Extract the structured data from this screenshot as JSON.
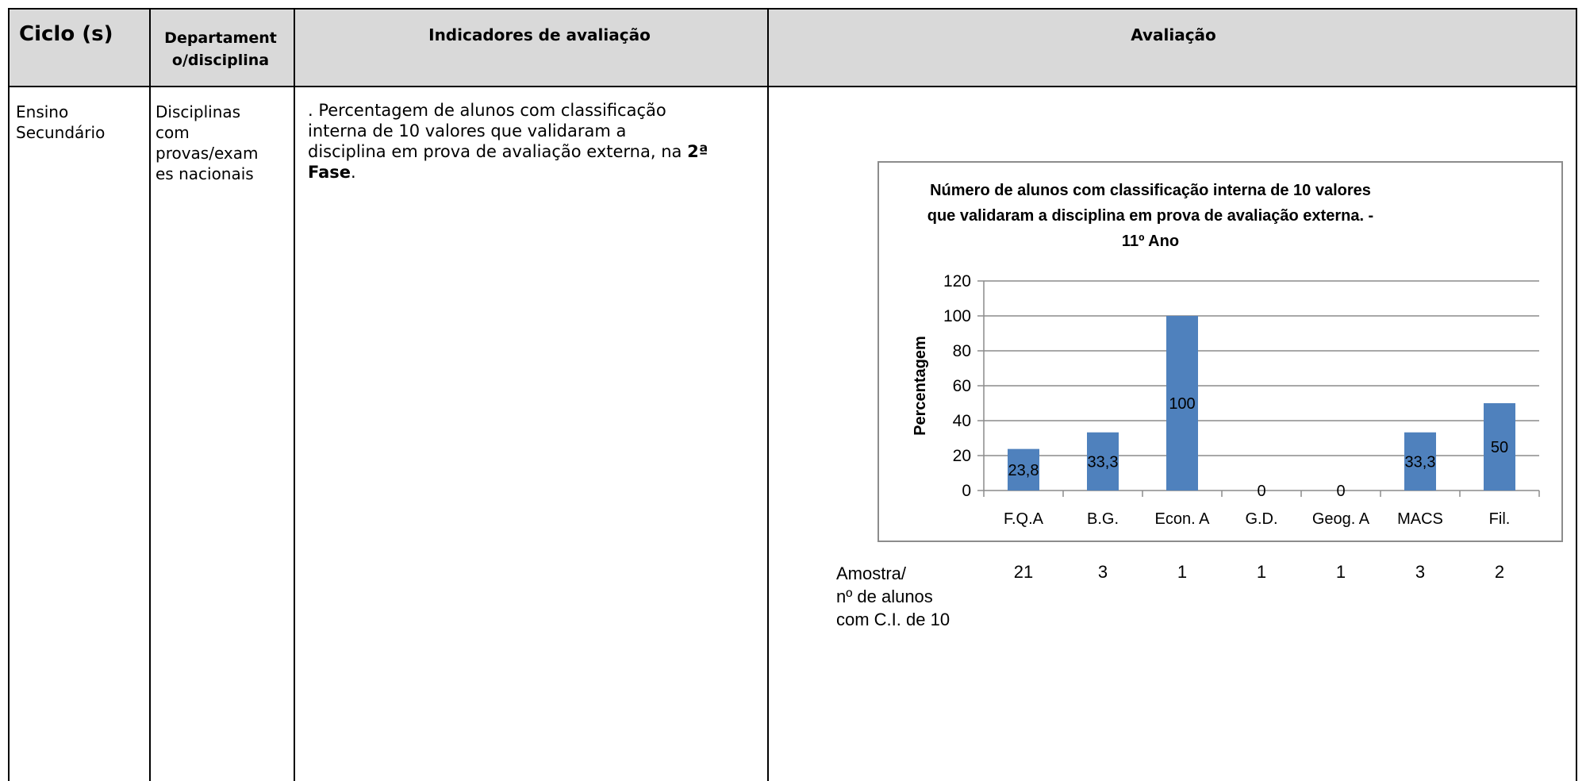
{
  "header": {
    "ciclo": "Ciclo (s)",
    "departamento_line1": "Departament",
    "departamento_line2": "o/disciplina",
    "indicadores": "Indicadores de avaliação",
    "avaliacao": "Avaliação"
  },
  "row": {
    "ciclo_line1": "Ensino",
    "ciclo_line2": "Secundário",
    "dep_lines": [
      "Disciplinas",
      "com",
      "provas/exam",
      "es nacionais"
    ],
    "ind_line1": ". Percentagem de alunos com classificação",
    "ind_line2": "interna de 10 valores que validaram a",
    "ind_line3_pre": "disciplina em prova de avaliação externa, na ",
    "ind_line3_bold": "2ª",
    "ind_line4_bold": "Fase",
    "ind_line4_post": "."
  },
  "chart_data": {
    "type": "bar",
    "title_lines": [
      "Número de alunos com classificação interna de 10 valores",
      "que validaram a disciplina em prova de avaliação externa. -",
      "11º Ano"
    ],
    "ylabel": "Percentagem",
    "xlabel": "",
    "ylim": [
      0,
      120
    ],
    "yticks": [
      "0",
      "20",
      "40",
      "60",
      "80",
      "100",
      "120"
    ],
    "categories": [
      "F.Q.A",
      "B.G.",
      "Econ. A",
      "G.D.",
      "Geog. A",
      "MACS",
      "Fil."
    ],
    "values": [
      23.8,
      33.3,
      100,
      0,
      0,
      33.3,
      50
    ],
    "data_labels": [
      "23,8",
      "33,3",
      "100",
      "0",
      "0",
      "33,3",
      "50"
    ],
    "bar_color": "#4f81bd",
    "grid": true
  },
  "amostra": {
    "label_lines": [
      "Amostra/",
      "nº de alunos",
      "com C.I. de 10"
    ],
    "values": [
      "21",
      "3",
      "1",
      "1",
      "1",
      "3",
      "2"
    ]
  }
}
